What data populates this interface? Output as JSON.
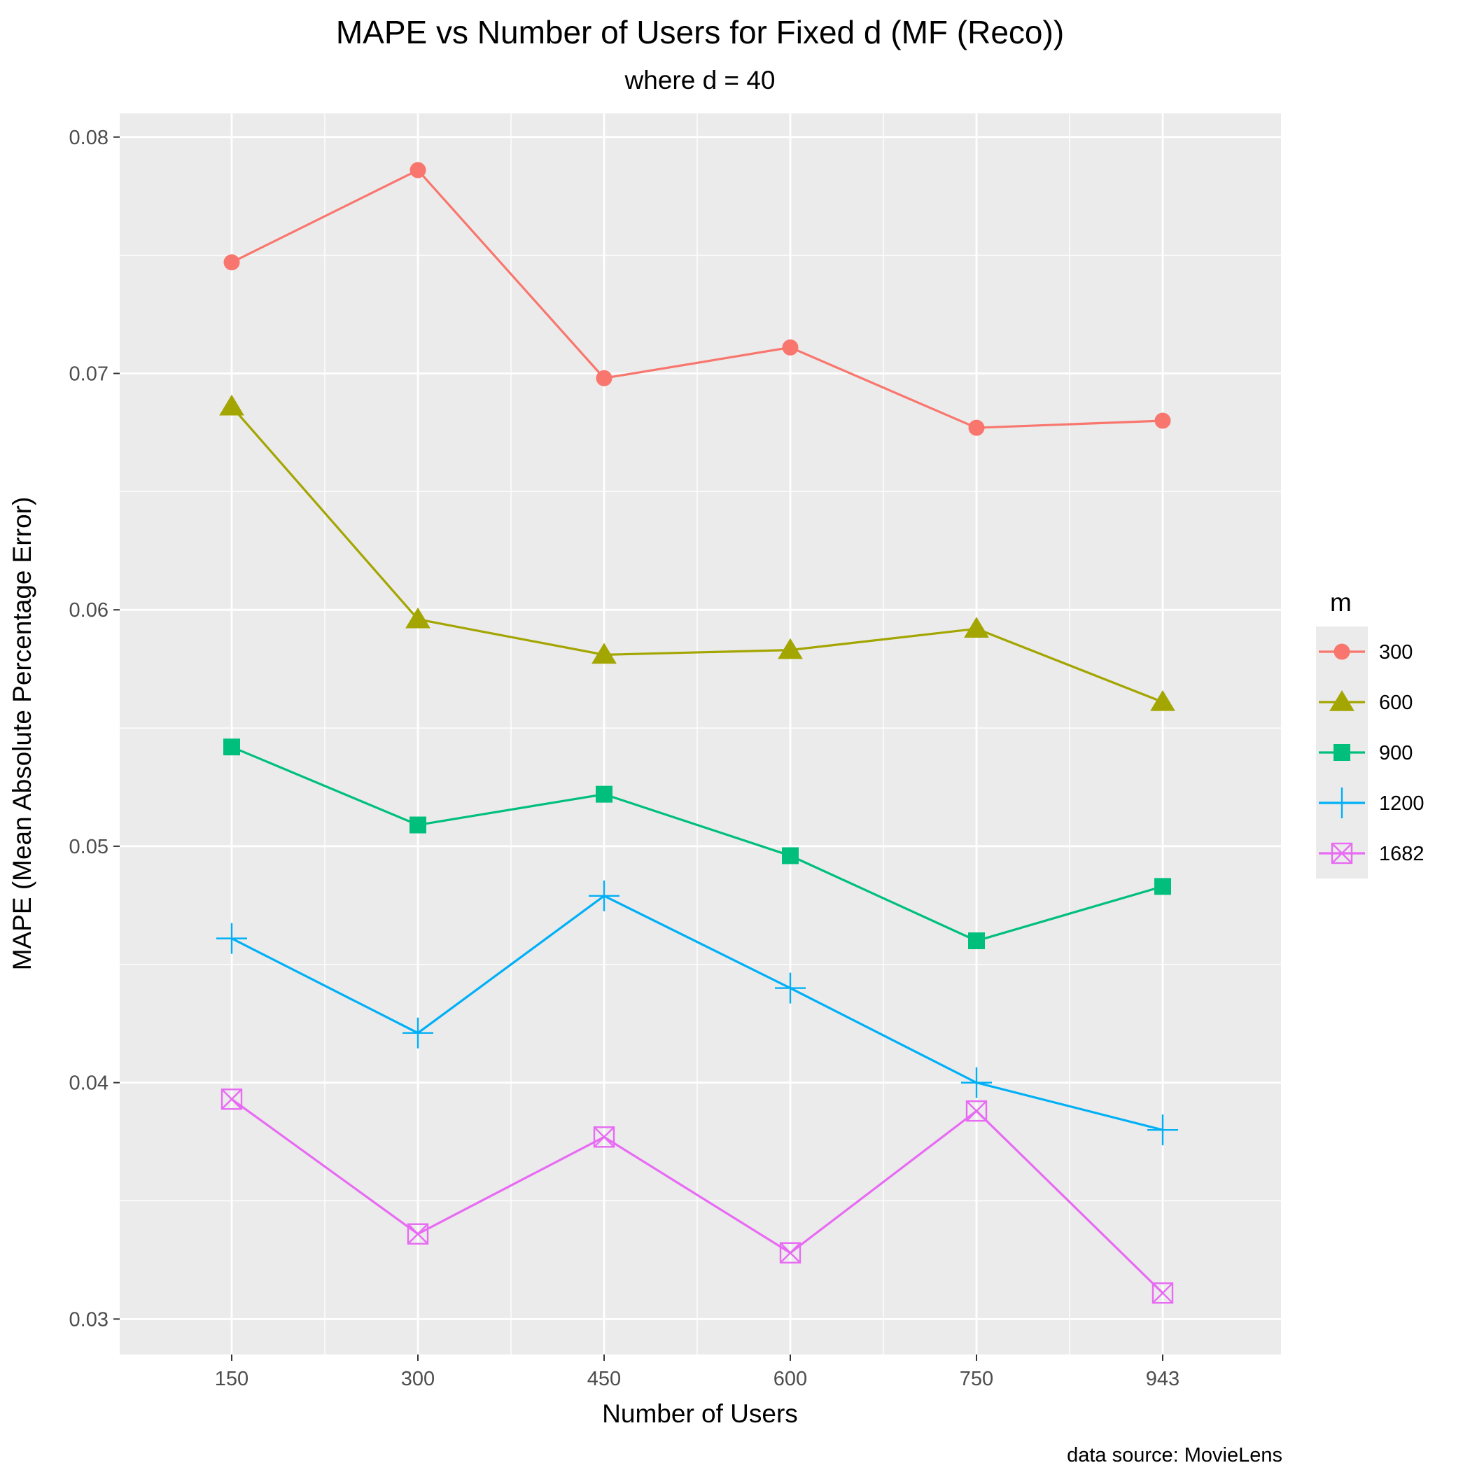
{
  "chart_data": {
    "type": "line",
    "title": "MAPE vs Number of Users for Fixed d (MF (Reco))",
    "subtitle": "where d = 40",
    "xlabel": "Number of Users",
    "ylabel": "MAPE (Mean Absolute Percentage Error)",
    "caption": "data source: MovieLens",
    "categories": [
      "150",
      "300",
      "450",
      "600",
      "750",
      "943"
    ],
    "ylim": [
      0.0285,
      0.081
    ],
    "yticks": [
      0.03,
      0.04,
      0.05,
      0.06,
      0.07,
      0.08
    ],
    "ytick_labels": [
      "0.03",
      "0.04",
      "0.05",
      "0.06",
      "0.07",
      "0.08"
    ],
    "grid": true,
    "legend": {
      "title": "m",
      "placement": "right"
    },
    "series": [
      {
        "name": "300",
        "color": "#F8766D",
        "marker": "circle",
        "values": [
          0.0747,
          0.0786,
          0.0698,
          0.0711,
          0.0677,
          0.068
        ]
      },
      {
        "name": "600",
        "color": "#A3A500",
        "marker": "triangle",
        "values": [
          0.0686,
          0.0596,
          0.0581,
          0.0583,
          0.0592,
          0.0561
        ]
      },
      {
        "name": "900",
        "color": "#00BF7D",
        "marker": "square",
        "values": [
          0.0542,
          0.0509,
          0.0522,
          0.0496,
          0.046,
          0.0483
        ]
      },
      {
        "name": "1200",
        "color": "#00B0F6",
        "marker": "plus",
        "values": [
          0.0461,
          0.0421,
          0.0479,
          0.044,
          0.04,
          0.038
        ]
      },
      {
        "name": "1682",
        "color": "#E76BF3",
        "marker": "square-cross",
        "values": [
          0.0393,
          0.0336,
          0.0377,
          0.0328,
          0.0388,
          0.0311
        ]
      }
    ]
  }
}
